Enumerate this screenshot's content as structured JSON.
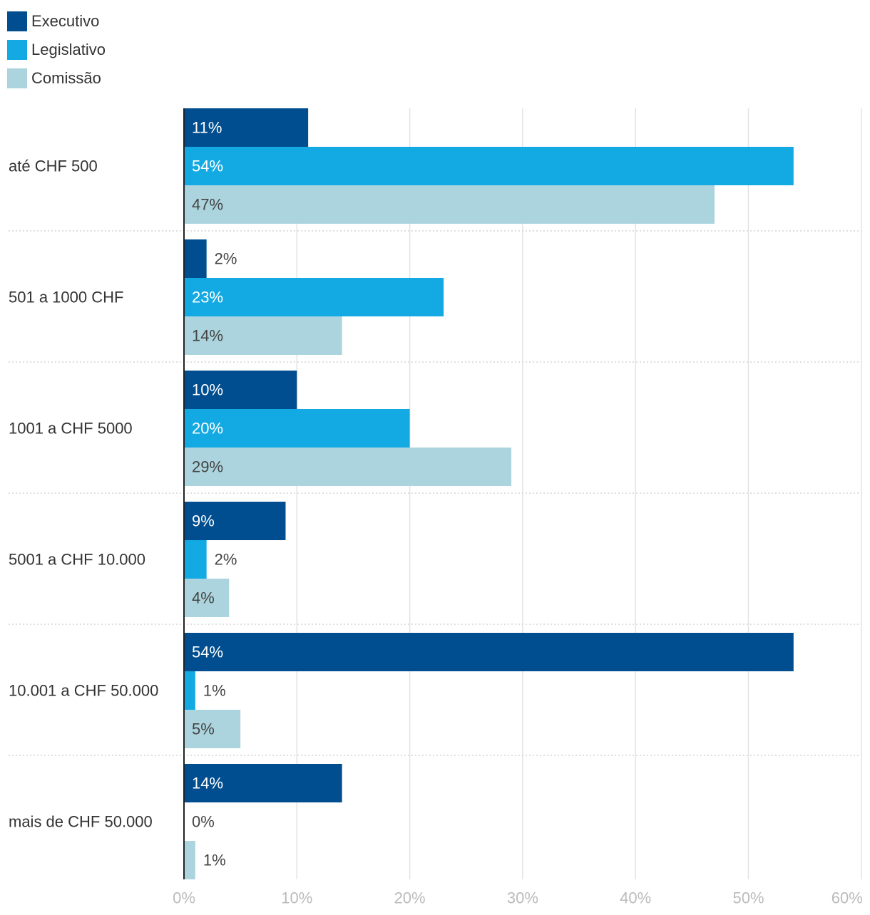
{
  "chart_data": {
    "type": "bar",
    "orientation": "horizontal",
    "categories": [
      "até CHF 500",
      "501 a 1000 CHF",
      "1001 a CHF 5000",
      "5001 a CHF 10.000",
      "10.001 a CHF 50.000",
      "mais de CHF 50.000"
    ],
    "series": [
      {
        "name": "Executivo",
        "color": "#004d8f",
        "values": [
          11,
          2,
          10,
          9,
          54,
          14
        ]
      },
      {
        "name": "Legislativo",
        "color": "#13a9e3",
        "values": [
          54,
          23,
          20,
          2,
          1,
          0
        ]
      },
      {
        "name": "Comissão",
        "color": "#acd4de",
        "values": [
          47,
          14,
          29,
          4,
          5,
          1
        ]
      }
    ],
    "value_suffix": "%",
    "xlim": [
      0,
      60
    ],
    "xticks": [
      0,
      10,
      20,
      30,
      40,
      50,
      60
    ],
    "xtick_labels": [
      "0%",
      "10%",
      "20%",
      "30%",
      "40%",
      "50%",
      "60%"
    ],
    "grid": true,
    "legend_position": "top-left",
    "title": "",
    "xlabel": "",
    "ylabel": ""
  }
}
